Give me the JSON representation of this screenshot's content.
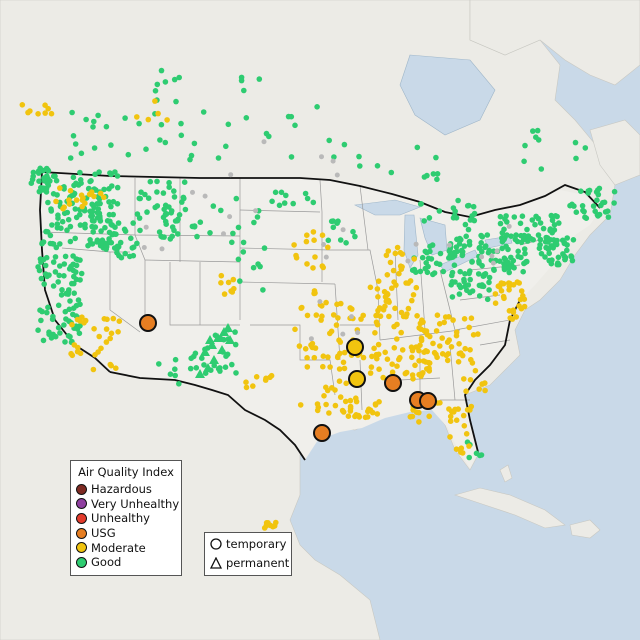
{
  "colors": {
    "ocean": "#c9d9e8",
    "land": "#ecebe6",
    "land_us": "#f0efeb",
    "state_line": "#9a9a9a",
    "border_line": "#111111",
    "lake": "#c9d9e8",
    "nodata_point": "#b9b9b9"
  },
  "aqi_legend": {
    "title": "Air Quality Index",
    "items": [
      {
        "label": "Hazardous",
        "color": "#7e2a22"
      },
      {
        "label": "Very Unhealthy",
        "color": "#8f3fa0"
      },
      {
        "label": "Unhealthy",
        "color": "#e33b2c"
      },
      {
        "label": "USG",
        "color": "#e67e22"
      },
      {
        "label": "Moderate",
        "color": "#f1c40f"
      },
      {
        "label": "Good",
        "color": "#2ecc71"
      }
    ]
  },
  "shape_legend": {
    "items": [
      {
        "label": "temporary",
        "shape": "circle"
      },
      {
        "label": "permanent",
        "shape": "triangle"
      }
    ]
  },
  "monitors": {
    "temporary_highlighted": [
      {
        "lon": -113.7,
        "lat": 37.0,
        "category": "USG"
      },
      {
        "lon": -94.2,
        "lat": 35.0,
        "category": "Moderate"
      },
      {
        "lon": -94.0,
        "lat": 32.3,
        "category": "Moderate"
      },
      {
        "lon": -90.6,
        "lat": 32.0,
        "category": "USG"
      },
      {
        "lon": -88.2,
        "lat": 30.6,
        "category": "USG"
      },
      {
        "lon": -87.3,
        "lat": 30.5,
        "category": "USG"
      },
      {
        "lon": -97.3,
        "lat": 27.8,
        "category": "USG"
      }
    ]
  }
}
